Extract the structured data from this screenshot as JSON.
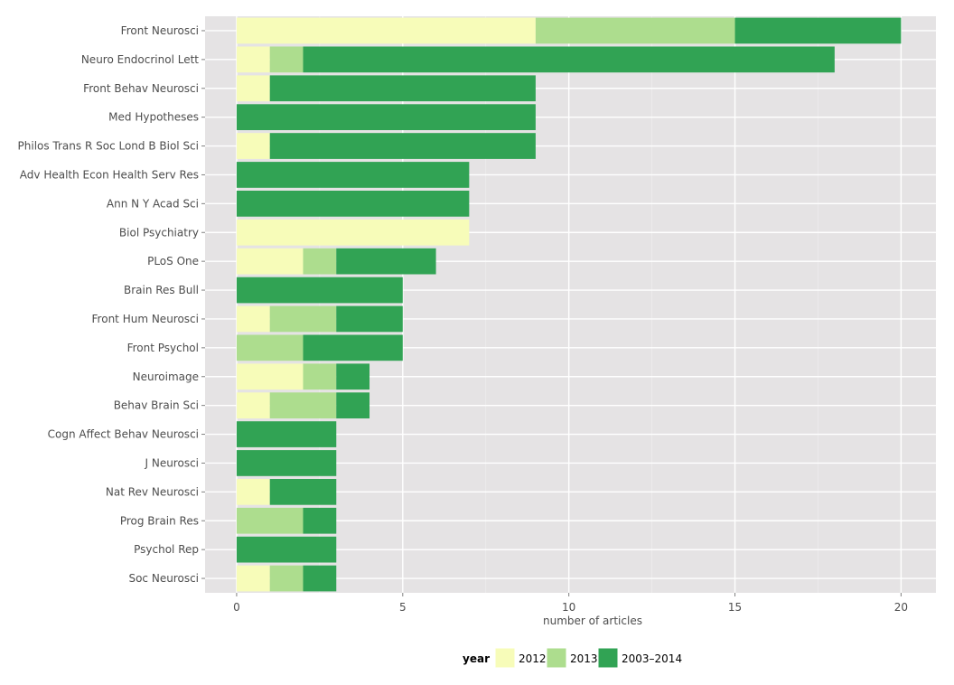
{
  "chart_data": {
    "type": "bar",
    "orientation": "horizontal",
    "stacked": true,
    "xlabel": "number of articles",
    "ylabel": "",
    "xlim": [
      -0.95,
      21.05
    ],
    "x_ticks": [
      0,
      5,
      10,
      15,
      20
    ],
    "x_tick_labels": [
      "0",
      "5",
      "10",
      "15",
      "20"
    ],
    "grid": true,
    "legend": {
      "title": "year",
      "position": "bottom"
    },
    "categories": [
      "Front Neurosci",
      "Neuro Endocrinol Lett",
      "Front Behav Neurosci",
      "Med Hypotheses",
      "Philos Trans R Soc Lond B Biol Sci",
      "Adv Health Econ Health Serv Res",
      "Ann N Y Acad Sci",
      "Biol Psychiatry",
      "PLoS One",
      "Brain Res Bull",
      "Front Hum Neurosci",
      "Front Psychol",
      "Neuroimage",
      "Behav Brain Sci",
      "Cogn Affect Behav Neurosci",
      "J Neurosci",
      "Nat Rev Neurosci",
      "Prog Brain Res",
      "Psychol Rep",
      "Soc Neurosci"
    ],
    "series": [
      {
        "name": "2012",
        "color": "#f7fcb9",
        "values": [
          9,
          1,
          1,
          0,
          1,
          0,
          0,
          7,
          2,
          0,
          1,
          0,
          2,
          1,
          0,
          0,
          1,
          0,
          0,
          1
        ]
      },
      {
        "name": "2013",
        "color": "#addd8e",
        "values": [
          6,
          1,
          0,
          0,
          0,
          0,
          0,
          0,
          1,
          0,
          2,
          2,
          1,
          2,
          0,
          0,
          0,
          2,
          0,
          1
        ]
      },
      {
        "name": "2003–2014",
        "color": "#31a354",
        "values": [
          5,
          16,
          8,
          9,
          8,
          7,
          7,
          0,
          3,
          5,
          2,
          3,
          1,
          1,
          3,
          3,
          2,
          1,
          3,
          1
        ]
      }
    ]
  }
}
